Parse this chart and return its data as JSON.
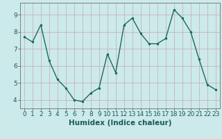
{
  "x": [
    0,
    1,
    2,
    3,
    4,
    5,
    6,
    7,
    8,
    9,
    10,
    11,
    12,
    13,
    14,
    15,
    16,
    17,
    18,
    19,
    20,
    21,
    22,
    23
  ],
  "y": [
    7.7,
    7.4,
    8.4,
    6.3,
    5.2,
    4.7,
    4.0,
    3.9,
    4.4,
    4.7,
    6.7,
    5.6,
    8.4,
    8.8,
    7.9,
    7.3,
    7.3,
    7.6,
    9.3,
    8.8,
    8.0,
    6.4,
    4.9,
    4.6
  ],
  "line_color": "#1a6b5a",
  "marker": ".",
  "marker_size": 3,
  "line_width": 1.0,
  "background_color": "#cceaea",
  "grid_color": "#c8a8a8",
  "xlabel": "Humidex (Indice chaleur)",
  "xlim": [
    -0.5,
    23.5
  ],
  "ylim": [
    3.5,
    9.7
  ],
  "yticks": [
    4,
    5,
    6,
    7,
    8,
    9
  ],
  "xticks": [
    0,
    1,
    2,
    3,
    4,
    5,
    6,
    7,
    8,
    9,
    10,
    11,
    12,
    13,
    14,
    15,
    16,
    17,
    18,
    19,
    20,
    21,
    22,
    23
  ],
  "xlabel_fontsize": 7.5,
  "tick_fontsize": 6.5
}
